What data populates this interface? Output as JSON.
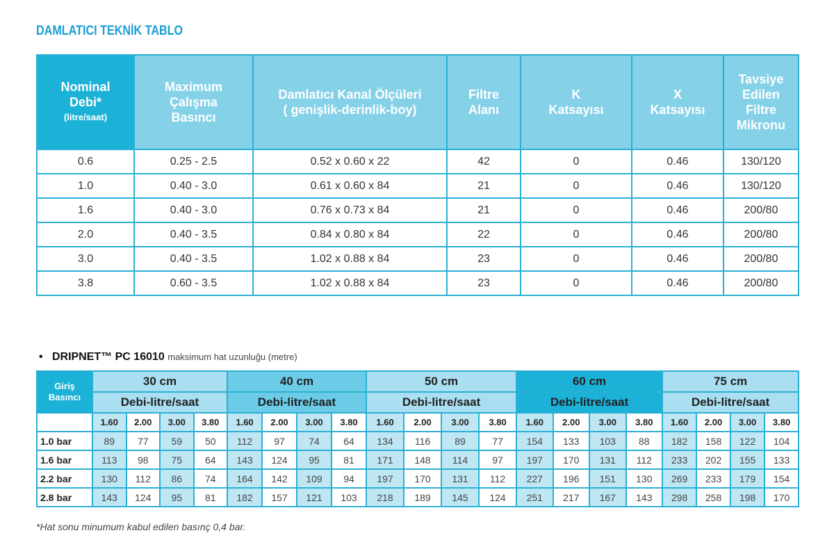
{
  "title": "DAMLATICI TEKNİK TABLO",
  "table1": {
    "headers": [
      {
        "lines": [
          "Nominal",
          "Debi*"
        ],
        "small": "(litre/saat)"
      },
      {
        "lines": [
          "Maximum",
          "Çalışma",
          "Basıncı"
        ]
      },
      {
        "lines": [
          "Damlatıcı Kanal Ölçüleri",
          "( genişlik-derinlik-boy)"
        ]
      },
      {
        "lines": [
          "Filtre",
          "Alanı"
        ]
      },
      {
        "lines": [
          "K",
          "Katsayısı"
        ]
      },
      {
        "lines": [
          "X",
          "Katsayısı"
        ]
      },
      {
        "lines": [
          "Tavsiye",
          "Edilen",
          "Filtre",
          "Mikronu"
        ]
      }
    ],
    "rows": [
      [
        "0.6",
        "0.25 - 2.5",
        "0.52 x 0.60 x 22",
        "42",
        "0",
        "0.46",
        "130/120"
      ],
      [
        "1.0",
        "0.40 - 3.0",
        "0.61 x 0.60 x 84",
        "21",
        "0",
        "0.46",
        "130/120"
      ],
      [
        "1.6",
        "0.40 - 3.0",
        "0.76 x 0.73 x 84",
        "21",
        "0",
        "0.46",
        "200/80"
      ],
      [
        "2.0",
        "0.40 - 3.5",
        "0.84 x 0.80 x 84",
        "22",
        "0",
        "0.46",
        "200/80"
      ],
      [
        "3.0",
        "0.40 - 3.5",
        "1.02 x 0.88 x 84",
        "23",
        "0",
        "0.46",
        "200/80"
      ],
      [
        "3.8",
        "0.60 - 3.5",
        "1.02 x 0.88 x 84",
        "23",
        "0",
        "0.46",
        "200/80"
      ]
    ]
  },
  "table2": {
    "bullet": "•",
    "product": "DRIPNET™ PC 16010",
    "subtitle": "maksimum hat uzunluğu (metre)",
    "row_header": [
      "Giriş",
      "Basıncı"
    ],
    "groups": [
      "30 cm",
      "40 cm",
      "50 cm",
      "60 cm",
      "75 cm"
    ],
    "debi_label": "Debi-litre/saat",
    "flows": [
      "1.60",
      "2.00",
      "3.00",
      "3.80"
    ],
    "rows": [
      {
        "label": "1.0 bar",
        "values": [
          89,
          77,
          59,
          50,
          112,
          97,
          74,
          64,
          134,
          116,
          89,
          77,
          154,
          133,
          103,
          88,
          182,
          158,
          122,
          104
        ]
      },
      {
        "label": "1.6 bar",
        "values": [
          113,
          98,
          75,
          64,
          143,
          124,
          95,
          81,
          171,
          148,
          114,
          97,
          197,
          170,
          131,
          112,
          233,
          202,
          155,
          133
        ]
      },
      {
        "label": "2.2 bar",
        "values": [
          130,
          112,
          86,
          74,
          164,
          142,
          109,
          94,
          197,
          170,
          131,
          112,
          227,
          196,
          151,
          130,
          269,
          233,
          179,
          154
        ]
      },
      {
        "label": "2.8 bar",
        "values": [
          143,
          124,
          95,
          81,
          182,
          157,
          121,
          103,
          218,
          189,
          145,
          124,
          251,
          217,
          167,
          143,
          298,
          258,
          198,
          170
        ]
      }
    ]
  },
  "note": "*Hat sonu minumum kabul edilen basınç 0,4 bar.",
  "colors": {
    "title": "#1a9ed4",
    "header_dark": "#1cb2d8",
    "header_light": "#85d1e8",
    "border": "#2ab0d4"
  }
}
